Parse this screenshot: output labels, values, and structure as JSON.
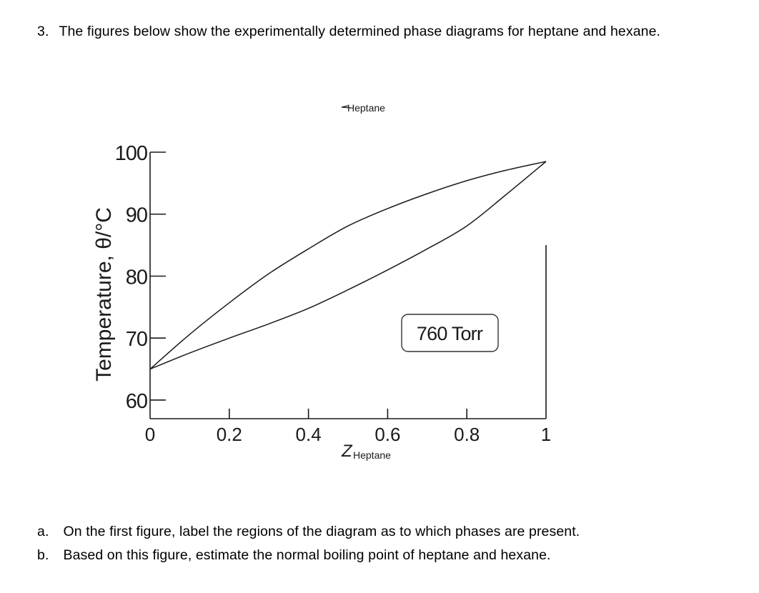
{
  "question": {
    "number": "3.",
    "intro": "The figures below show the experimentally determined phase diagrams for heptane and hexane.",
    "parts": [
      {
        "label": "a.",
        "text": "On the first figure, label the regions of the diagram as to which phases are present."
      },
      {
        "label": "b.",
        "text": "Based on this figure, estimate the normal boiling point of heptane and hexane."
      }
    ]
  },
  "figure": {
    "top_label": "Heptane",
    "pressure_label": "760 Torr",
    "colors": {
      "curve": "#1a1a1a",
      "box": "#333333"
    }
  },
  "chart_data": {
    "type": "line",
    "title": "",
    "xlabel": "Z",
    "xlabel_subscript": "Heptane",
    "ylabel": "Temperature, θ/°C",
    "xlim": [
      0,
      1
    ],
    "ylim": [
      57,
      100
    ],
    "x_ticks": [
      0,
      0.2,
      0.4,
      0.6,
      0.8,
      1
    ],
    "x_tick_labels": [
      "0",
      "0.2",
      "0.4",
      "0.6",
      "0.8",
      "1"
    ],
    "y_ticks": [
      60,
      70,
      80,
      90,
      100
    ],
    "y_tick_labels": [
      "60",
      "70",
      "80",
      "90",
      "100"
    ],
    "annotations": [
      "760 Torr"
    ],
    "series": [
      {
        "x": [
          0,
          0.1,
          0.2,
          0.3,
          0.4,
          0.5,
          0.6,
          0.7,
          0.8,
          0.9,
          1.0
        ],
        "y": [
          65,
          67.6,
          70,
          72.3,
          74.8,
          77.8,
          81,
          84.4,
          88.1,
          93.2,
          98.5
        ]
      },
      {
        "x": [
          0,
          0.1,
          0.2,
          0.3,
          0.4,
          0.5,
          0.6,
          0.7,
          0.8,
          0.9,
          1.0
        ],
        "y": [
          65,
          70.6,
          75.7,
          80.4,
          84.4,
          88.1,
          90.9,
          93.3,
          95.4,
          97.1,
          98.5
        ]
      }
    ],
    "grid": false,
    "legend": "none"
  }
}
